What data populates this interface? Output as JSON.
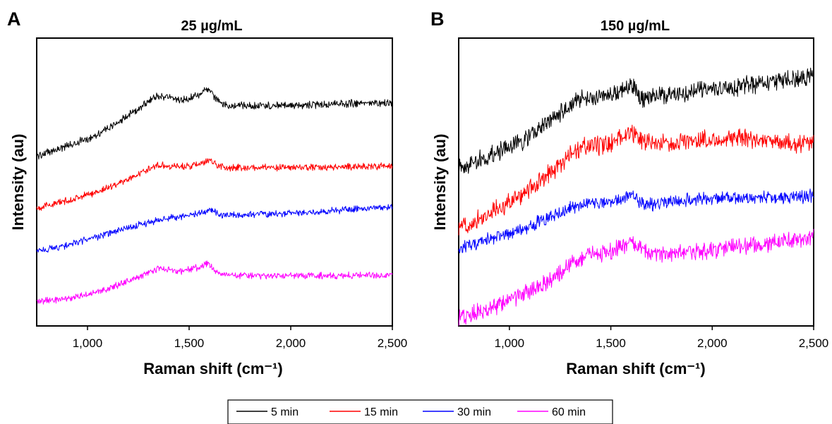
{
  "chart_data": [
    {
      "type": "line",
      "panel_label": "A",
      "title": "25 µg/mL",
      "xlabel": "Raman shift (cm⁻¹)",
      "ylabel": "Intensity (au)",
      "xlim": [
        750,
        2500
      ],
      "ylim": [
        0,
        100
      ],
      "xticks": [
        1000,
        1500,
        2000,
        2500
      ],
      "xtick_labels": [
        "1,000",
        "1,500",
        "2,000",
        "2,500"
      ],
      "y_ticks_shown": false,
      "series": [
        {
          "name": "5 min",
          "color": "#000000",
          "x": [
            750,
            900,
            1000,
            1100,
            1200,
            1300,
            1350,
            1400,
            1450,
            1500,
            1550,
            1590,
            1620,
            1650,
            1700,
            1800,
            2000,
            2200,
            2400,
            2500
          ],
          "y": [
            59,
            62.5,
            65,
            68.5,
            73,
            78,
            80,
            79.5,
            78.5,
            79,
            80.5,
            82.5,
            80,
            77.5,
            76.5,
            76.5,
            76.5,
            77,
            77.5,
            77.5
          ]
        },
        {
          "name": "15 min",
          "color": "#ff0000",
          "x": [
            750,
            900,
            1000,
            1100,
            1200,
            1300,
            1350,
            1400,
            1450,
            1500,
            1550,
            1600,
            1650,
            1700,
            2000,
            2500
          ],
          "y": [
            41,
            43.5,
            45.5,
            48,
            51,
            54.5,
            56,
            55.5,
            55.5,
            55.5,
            56,
            57.5,
            55.5,
            55,
            55,
            55.5
          ]
        },
        {
          "name": "30 min",
          "color": "#0000ff",
          "x": [
            750,
            900,
            1000,
            1100,
            1200,
            1300,
            1400,
            1500,
            1550,
            1600,
            1650,
            1700,
            1900,
            2100,
            2300,
            2500
          ],
          "y": [
            26,
            28,
            30,
            32,
            34,
            36,
            37.5,
            38.5,
            39,
            40.5,
            38.5,
            38.5,
            39,
            39.5,
            40.5,
            41.5
          ]
        },
        {
          "name": "60 min",
          "color": "#ff00ff",
          "x": [
            750,
            900,
            1000,
            1100,
            1200,
            1300,
            1350,
            1400,
            1450,
            1500,
            1550,
            1590,
            1620,
            1650,
            1700,
            2000,
            2500
          ],
          "y": [
            8.5,
            9.5,
            11,
            13,
            15.5,
            18.5,
            20,
            19.5,
            19,
            19.5,
            20.5,
            22,
            20,
            18,
            17.5,
            17.5,
            17.5
          ]
        }
      ]
    },
    {
      "type": "line",
      "panel_label": "B",
      "title": "150 µg/mL",
      "xlabel": "Raman shift (cm⁻¹)",
      "ylabel": "Intensity (au)",
      "xlim": [
        750,
        2500
      ],
      "ylim": [
        0,
        100
      ],
      "xticks": [
        1000,
        1500,
        2000,
        2500
      ],
      "xtick_labels": [
        "1,000",
        "1,500",
        "2,000",
        "2,500"
      ],
      "y_ticks_shown": false,
      "series": [
        {
          "name": "5 min",
          "color": "#000000",
          "x": [
            750,
            900,
            1000,
            1100,
            1200,
            1300,
            1350,
            1400,
            1500,
            1550,
            1600,
            1620,
            1650,
            1700,
            1900,
            2100,
            2300,
            2500
          ],
          "y": [
            55,
            59,
            62,
            66,
            71,
            76.5,
            78.5,
            79,
            80,
            82,
            84,
            82,
            79,
            79.5,
            81,
            83,
            85,
            86.5
          ]
        },
        {
          "name": "15 min",
          "color": "#ff0000",
          "x": [
            750,
            900,
            1000,
            1100,
            1200,
            1300,
            1350,
            1400,
            1500,
            1550,
            1600,
            1650,
            1700,
            1800,
            1900,
            2000,
            2100,
            2200,
            2300,
            2400,
            2500
          ],
          "y": [
            34,
            39,
            43,
            47.5,
            53,
            59,
            62,
            62.5,
            63.5,
            65.5,
            67,
            64.5,
            63.5,
            63.5,
            64.5,
            65,
            65.5,
            65,
            64,
            63,
            63.5
          ]
        },
        {
          "name": "30 min",
          "color": "#0000ff",
          "x": [
            750,
            900,
            1000,
            1100,
            1200,
            1300,
            1350,
            1400,
            1500,
            1550,
            1600,
            1650,
            1700,
            1900,
            2100,
            2300,
            2500
          ],
          "y": [
            27,
            30,
            32,
            34.5,
            37.5,
            41,
            42.5,
            42.5,
            42.5,
            44,
            45.5,
            43,
            42.5,
            44,
            44.5,
            44.5,
            45
          ]
        },
        {
          "name": "60 min",
          "color": "#ff00ff",
          "x": [
            750,
            900,
            1000,
            1100,
            1200,
            1300,
            1350,
            1400,
            1500,
            1550,
            1600,
            1650,
            1700,
            1800,
            1900,
            2000,
            2100,
            2200,
            2300,
            2400,
            2500
          ],
          "y": [
            3,
            6,
            9,
            12,
            16,
            21,
            24,
            25,
            25.5,
            27.5,
            29,
            27,
            25.5,
            25,
            25.5,
            26.5,
            27.5,
            28,
            29,
            30,
            30.5
          ]
        }
      ]
    }
  ],
  "legend": {
    "items": [
      {
        "label": "5 min",
        "color": "#000000"
      },
      {
        "label": "15 min",
        "color": "#ff0000"
      },
      {
        "label": "30 min",
        "color": "#0000ff"
      },
      {
        "label": "60 min",
        "color": "#ff00ff"
      }
    ]
  }
}
